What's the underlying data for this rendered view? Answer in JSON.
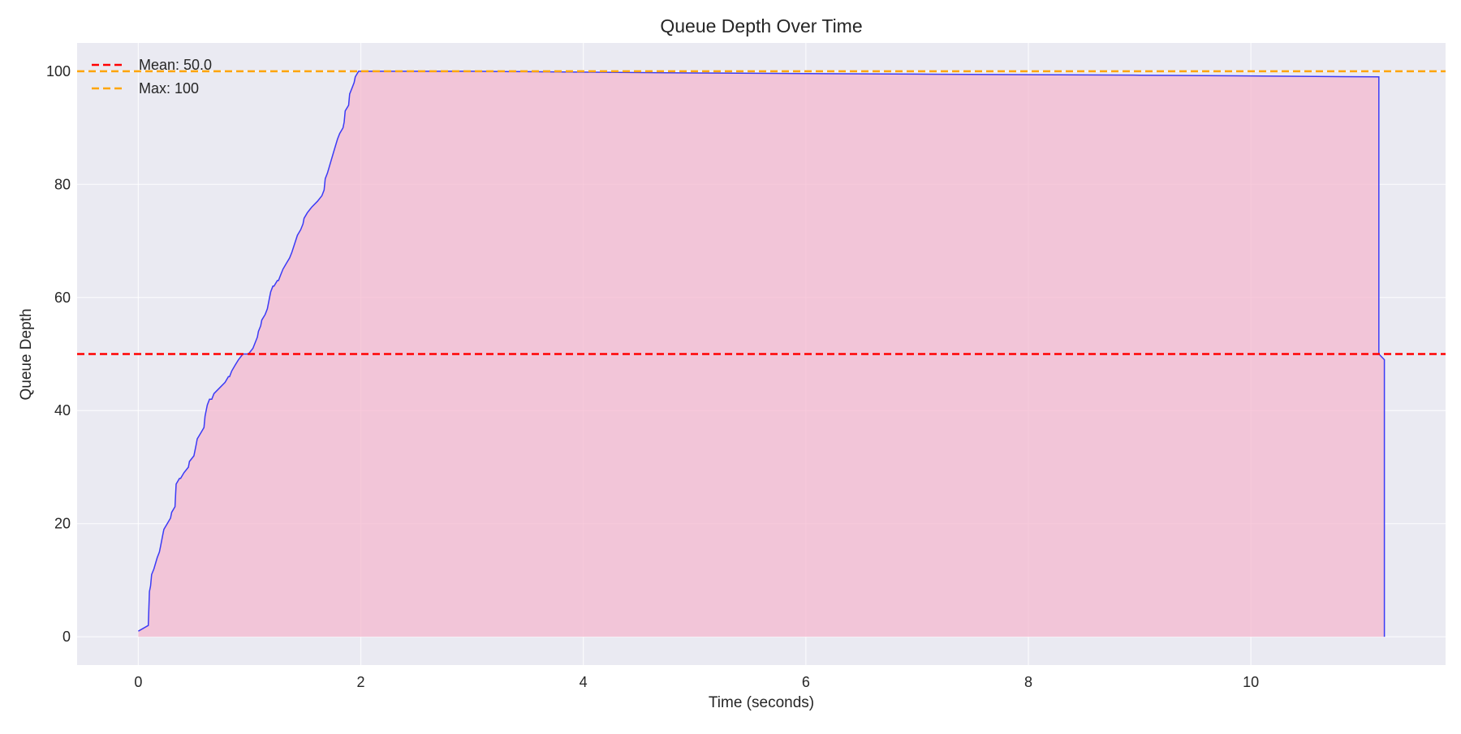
{
  "chart_data": {
    "type": "area",
    "title": "Queue Depth Over Time",
    "xlabel": "Time (seconds)",
    "ylabel": "Queue Depth",
    "xlim": [
      -0.55,
      11.75
    ],
    "ylim": [
      -5,
      105
    ],
    "xticks": [
      0,
      2,
      4,
      6,
      8,
      10
    ],
    "yticks": [
      0,
      20,
      40,
      60,
      80,
      100
    ],
    "grid": true,
    "legend_position": "top-left",
    "colors": {
      "plot_background": "#eaeaf2",
      "grid": "#ffffff",
      "line": "#3b3bf5",
      "fill": "#f4b8cf",
      "mean_line": "#ff0000",
      "max_line": "#ffa500",
      "text": "#262626"
    },
    "reference_lines": [
      {
        "label": "Mean: 50.0",
        "y": 50.0,
        "color": "#ff0000",
        "style": "dashed"
      },
      {
        "label": "Max: 100",
        "y": 100,
        "color": "#ffa500",
        "style": "dashed"
      }
    ],
    "series": [
      {
        "x": [
          0.0,
          0.09,
          0.1,
          0.11,
          0.12,
          0.14,
          0.17,
          0.19,
          0.2,
          0.22,
          0.23,
          0.26,
          0.29,
          0.3,
          0.33,
          0.34,
          0.37,
          0.38,
          0.41,
          0.45,
          0.46,
          0.5,
          0.52,
          0.53,
          0.56,
          0.59,
          0.6,
          0.61,
          0.62,
          0.64,
          0.66,
          0.68,
          0.73,
          0.78,
          0.81,
          0.82,
          0.84,
          0.87,
          0.9,
          0.94,
          0.99,
          1.03,
          1.07,
          1.08,
          1.1,
          1.11,
          1.14,
          1.16,
          1.18,
          1.19,
          1.21,
          1.22,
          1.25,
          1.26,
          1.28,
          1.3,
          1.33,
          1.36,
          1.38,
          1.43,
          1.46,
          1.48,
          1.49,
          1.52,
          1.56,
          1.61,
          1.65,
          1.67,
          1.68,
          1.7,
          1.73,
          1.76,
          1.79,
          1.81,
          1.84,
          1.85,
          1.86,
          1.89,
          1.9,
          1.92,
          1.94,
          1.95,
          1.98,
          2.0,
          2.02,
          2.03,
          2.07,
          2.1,
          3.0,
          5.0,
          7.0,
          9.0,
          11.15,
          11.15,
          11.2,
          11.2
        ],
        "values": [
          1,
          2,
          8,
          9,
          11,
          12,
          14,
          15,
          16,
          18,
          19,
          20,
          21,
          22,
          23,
          27,
          28,
          28,
          29,
          30,
          31,
          32,
          34,
          35,
          36,
          37,
          39,
          40,
          41,
          42,
          42,
          43,
          44,
          45,
          46,
          46,
          47,
          48,
          49,
          50,
          50,
          51,
          53,
          54,
          55,
          56,
          57,
          58,
          60,
          61,
          62,
          62,
          63,
          63,
          64,
          65,
          66,
          67,
          68,
          71,
          72,
          73,
          74,
          75,
          76,
          77,
          78,
          79,
          81,
          82,
          84,
          86,
          88,
          89,
          90,
          91,
          93,
          94,
          96,
          97,
          98,
          99,
          100,
          100,
          100,
          100,
          100,
          100,
          100,
          99.7,
          99.5,
          99.3,
          99,
          50,
          49,
          0
        ]
      }
    ]
  }
}
